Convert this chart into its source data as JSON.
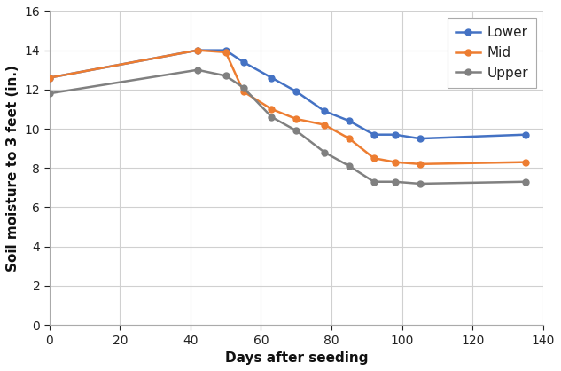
{
  "lower_x": [
    0,
    42,
    50,
    55,
    63,
    70,
    78,
    85,
    92,
    98,
    105,
    135
  ],
  "lower_y": [
    12.6,
    14.0,
    14.0,
    13.4,
    12.6,
    11.9,
    10.9,
    10.4,
    9.7,
    9.7,
    9.5,
    9.7
  ],
  "mid_x": [
    0,
    42,
    50,
    55,
    63,
    70,
    78,
    85,
    92,
    98,
    105,
    135
  ],
  "mid_y": [
    12.6,
    14.0,
    13.9,
    11.9,
    11.0,
    10.5,
    10.2,
    9.5,
    8.5,
    8.3,
    8.2,
    8.3
  ],
  "upper_x": [
    0,
    42,
    50,
    55,
    63,
    70,
    78,
    85,
    92,
    98,
    105,
    135
  ],
  "upper_y": [
    11.8,
    13.0,
    12.7,
    12.1,
    10.6,
    9.9,
    8.8,
    8.1,
    7.3,
    7.3,
    7.2,
    7.3
  ],
  "lower_color": "#4472C4",
  "mid_color": "#ED7D31",
  "upper_color": "#808080",
  "xlabel": "Days after seeding",
  "ylabel": "Soil moisture to 3 feet (in.)",
  "xlim": [
    0,
    140
  ],
  "ylim": [
    0,
    16
  ],
  "xticks": [
    0,
    20,
    40,
    60,
    80,
    100,
    120,
    140
  ],
  "yticks": [
    0,
    2,
    4,
    6,
    8,
    10,
    12,
    14,
    16
  ],
  "legend_labels": [
    "Lower",
    "Mid",
    "Upper"
  ],
  "marker": "o",
  "markersize": 5,
  "linewidth": 1.8,
  "grid_color": "#D0D0D0",
  "bg_color": "#FFFFFF",
  "label_fontsize": 11,
  "tick_fontsize": 10,
  "legend_fontsize": 11
}
